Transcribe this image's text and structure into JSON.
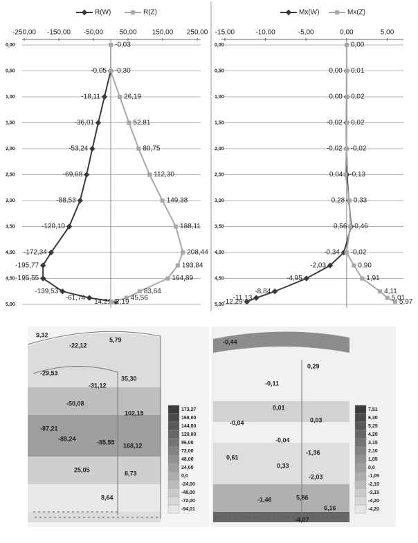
{
  "chart_data": [
    {
      "type": "line",
      "xlim": [
        -256,
        260
      ],
      "xticks": [
        {
          "value": -250,
          "label": "-250,00"
        },
        {
          "value": -150,
          "label": "-150,00"
        },
        {
          "value": -50,
          "label": "-50,00"
        },
        {
          "value": 50,
          "label": "50,00"
        },
        {
          "value": 150,
          "label": "150,00"
        },
        {
          "value": 250,
          "label": "250,00"
        }
      ],
      "ylim": [
        0,
        5
      ],
      "yticks": [
        {
          "value": 0,
          "label": "0,00"
        },
        {
          "value": 0.5,
          "label": "0,50"
        },
        {
          "value": 1,
          "label": "1,00"
        },
        {
          "value": 1.5,
          "label": "1,50"
        },
        {
          "value": 2,
          "label": "2,00"
        },
        {
          "value": 2.5,
          "label": "2,50"
        },
        {
          "value": 3,
          "label": "3,00"
        },
        {
          "value": 3.5,
          "label": "3,50"
        },
        {
          "value": 4,
          "label": "4,00"
        },
        {
          "value": 4.5,
          "label": "4,50"
        },
        {
          "value": 5,
          "label": "5,00"
        }
      ],
      "grid": true,
      "series": [
        {
          "name": "R(W)",
          "color": "#3a3a3a",
          "marker": "diamond",
          "depth": [
            0.5,
            1,
            1.5,
            2,
            2.5,
            3,
            3.5,
            4,
            4.25,
            4.5,
            4.75,
            4.875,
            4.95
          ],
          "values": [
            -0.05,
            -18.11,
            -36.01,
            -53.24,
            -69.68,
            -88.53,
            -120.1,
            -172.34,
            -195.77,
            -195.55,
            -139.53,
            -61.74,
            14.21
          ],
          "value_labels": [
            "-0,05",
            "-18,11",
            "-36,01",
            "-53,24",
            "-69,68",
            "-88,53",
            "-120,10",
            "-172,34",
            "-195,77",
            "-195,55",
            "-139,53",
            "-61,74",
            "14,21"
          ]
        },
        {
          "name": "R(Z)",
          "color": "#a8a8a8",
          "marker": "square",
          "depth": [
            0,
            0.5,
            1,
            1.5,
            2,
            2.5,
            3,
            3.5,
            4,
            4.25,
            4.5,
            4.75,
            4.875,
            4.95
          ],
          "values": [
            -0.03,
            -0.3,
            26.19,
            52.81,
            80.75,
            112.3,
            149.38,
            188.11,
            208.44,
            193.84,
            164.89,
            83.64,
            45.56,
            2.19
          ],
          "value_labels": [
            "-0,03",
            "-0,30",
            "26,19",
            "52,81",
            "80,75",
            "112,30",
            "149,38",
            "188,11",
            "208,44",
            "193,84",
            "164,89",
            "83,64",
            "45,56",
            "2,19"
          ]
        }
      ]
    },
    {
      "type": "line",
      "xlim": [
        -15.5,
        7
      ],
      "xticks": [
        {
          "value": -15,
          "label": "-15,00"
        },
        {
          "value": -10,
          "label": "-10,00"
        },
        {
          "value": -5,
          "label": "-5,00"
        },
        {
          "value": 0,
          "label": "0,00"
        },
        {
          "value": 5,
          "label": "5,00"
        }
      ],
      "ylim": [
        0,
        5
      ],
      "yticks": [
        {
          "value": 0,
          "label": "0,00"
        },
        {
          "value": 0.5,
          "label": "0,50"
        },
        {
          "value": 1,
          "label": "1,00"
        },
        {
          "value": 1.5,
          "label": "1,50"
        },
        {
          "value": 2,
          "label": "2,00"
        },
        {
          "value": 2.5,
          "label": "2,50"
        },
        {
          "value": 3,
          "label": "3,00"
        },
        {
          "value": 3.5,
          "label": "3,50"
        },
        {
          "value": 4,
          "label": "4,00"
        },
        {
          "value": 4.5,
          "label": "4,50"
        },
        {
          "value": 5,
          "label": "5,00"
        }
      ],
      "grid": true,
      "series": [
        {
          "name": "Mx(W)",
          "color": "#3a3a3a",
          "marker": "diamond",
          "depth": [
            0.5,
            1,
            1.5,
            2,
            2.5,
            3,
            3.5,
            4,
            4.25,
            4.5,
            4.75,
            4.875,
            4.95
          ],
          "values": [
            0,
            0,
            -0.02,
            -0.02,
            0.04,
            0.28,
            0.56,
            -0.34,
            -2.03,
            -4.95,
            -8.84,
            -11.13,
            -12.29
          ],
          "value_labels": [
            "0,00",
            "0,00",
            "-0,02",
            "-0,02",
            "0,04",
            "0,28",
            "0,56",
            "-0,34",
            "-2,03",
            "-4,95",
            "-8,84",
            "-11,13",
            "-12,29"
          ]
        },
        {
          "name": "Mx(Z)",
          "color": "#a8a8a8",
          "marker": "square",
          "depth": [
            0,
            0.5,
            1,
            1.5,
            2,
            2.5,
            3,
            3.5,
            4,
            4.25,
            4.5,
            4.75,
            4.875,
            4.95
          ],
          "values": [
            0,
            0.01,
            0.02,
            0.02,
            -0.02,
            -0.13,
            0.33,
            0.46,
            -0.02,
            0.9,
            1.91,
            4.11,
            5.01,
            5.97
          ],
          "value_labels": [
            "0,00",
            "0,01",
            "0,02",
            "0,02",
            "-0,02",
            "-0,13",
            "0,33",
            "0,46",
            "-0,02",
            "0,90",
            "1,91",
            "4,11",
            "5,01",
            "5,97"
          ]
        }
      ]
    }
  ],
  "contour_plots": [
    {
      "labels": [
        "9,32",
        "-22,12",
        "5,79",
        "-29,53",
        "-31,12",
        "35,30",
        "-50,08",
        "102,15",
        "-87,21",
        "-88,24",
        "-85,55",
        "168,12",
        "25,05",
        "8,73",
        "8,64"
      ],
      "legend": [
        "173,27",
        "168,00",
        "144,00",
        "120,00",
        "96,00",
        "72,00",
        "48,00",
        "24,00",
        "0,0",
        "-24,00",
        "-48,00",
        "-72,00",
        "-94,01"
      ]
    },
    {
      "labels": [
        "-0,44",
        "0,29",
        "-0,11",
        "0,01",
        "-0,04",
        "0,03",
        "-0,04",
        "-1,36",
        "0,61",
        "0,33",
        "-2,03",
        "-1,46",
        "5,86",
        "6,16",
        "-4,07"
      ],
      "legend": [
        "7,51",
        "6,30",
        "5,25",
        "4,20",
        "3,15",
        "2,10",
        "1,05",
        "0,0",
        "-1,05",
        "-2,10",
        "-3,15",
        "-4,20",
        "-4,20"
      ]
    }
  ]
}
